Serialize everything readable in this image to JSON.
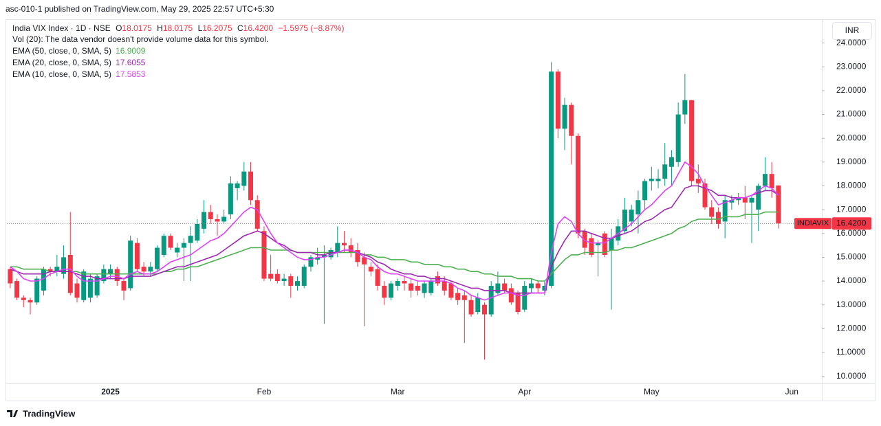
{
  "header": "asc-010-1 published on TradingView.com, May 29, 2025 22:57 UTC+5:30",
  "footer_brand": "TradingView",
  "currency": "INR",
  "chart_data": {
    "type": "candlestick",
    "symbol": "India VIX Index · 1D · NSE",
    "ohlc_legend": [
      {
        "label": "O",
        "value": 18.0175
      },
      {
        "label": "H",
        "value": 18.0175
      },
      {
        "label": "L",
        "value": 16.2075
      },
      {
        "label": "C",
        "value": 16.42,
        "value_label": "16.4200"
      }
    ],
    "change_label": "−1.5975 (−8.87%)",
    "volume_note": "Vol (20): The data vendor doesn't provide volume data for this symbol.",
    "up_color": "#089981",
    "down_color": "#f23645",
    "categories": [
      null,
      null,
      null,
      null,
      null,
      null,
      null,
      null,
      null,
      null,
      null,
      null,
      null,
      null,
      null,
      "2025",
      null,
      null,
      null,
      null,
      null,
      null,
      null,
      null,
      null,
      null,
      null,
      null,
      null,
      null,
      null,
      null,
      null,
      null,
      null,
      null,
      null,
      null,
      "Feb",
      null,
      null,
      null,
      null,
      null,
      null,
      null,
      null,
      null,
      null,
      null,
      null,
      null,
      null,
      null,
      null,
      null,
      null,
      null,
      "Mar",
      null,
      null,
      null,
      null,
      null,
      null,
      null,
      null,
      null,
      null,
      null,
      null,
      null,
      null,
      null,
      null,
      null,
      null,
      "Apr",
      null,
      null,
      null,
      null,
      null,
      null,
      null,
      null,
      null,
      null,
      null,
      null,
      null,
      null,
      null,
      null,
      null,
      null,
      "May",
      null,
      null,
      null,
      null,
      null,
      null,
      null,
      null,
      null,
      null,
      null,
      null,
      null,
      null,
      null,
      null,
      null,
      null,
      null,
      null,
      "Jun",
      null,
      null,
      null,
      null
    ],
    "open": [
      14.5,
      14.0,
      13.3,
      13.2,
      13.1,
      13.6,
      14.5,
      14.4,
      14.3,
      15.1,
      13.9,
      13.2,
      13.3,
      13.4,
      14.0,
      14.3,
      14.5,
      14.0,
      13.7,
      15.6,
      14.6,
      14.4,
      14.5,
      15.1,
      15.9,
      15.2,
      15.4,
      15.6,
      15.7,
      16.2,
      16.9,
      16.6,
      16.5,
      16.8,
      17.9,
      18.0,
      18.6,
      17.4,
      16.1,
      14.3,
      14.3,
      14.0,
      14.2,
      13.8,
      13.8,
      14.6,
      14.9,
      15.0,
      15.0,
      15.2,
      15.6,
      15.5,
      15.3,
      15.0,
      14.6,
      14.5,
      13.8,
      13.3,
      13.8,
      14.0,
      13.9,
      13.8,
      13.5,
      13.5,
      14.2,
      14.0,
      13.9,
      13.5,
      13.4,
      13.2,
      12.7,
      13.0,
      12.6,
      13.5,
      13.9,
      13.7,
      13.5,
      12.8,
      13.7,
      13.9,
      13.6,
      13.8,
      22.8,
      20.4,
      21.4,
      20.1,
      16.1,
      15.8,
      15.5,
      16.0,
      15.3,
      15.7,
      16.1,
      16.5,
      16.8,
      17.4,
      18.2,
      18.2,
      18.3,
      18.8,
      19.0,
      21.0,
      21.6,
      18.3,
      18.1,
      17.1,
      16.9,
      16.5,
      17.3,
      17.4,
      17.5,
      17.3,
      17.0,
      18.0,
      18.5,
      18.0175,
      null,
      null,
      null,
      null,
      null,
      null
    ],
    "high": [
      14.6,
      14.1,
      13.4,
      13.3,
      14.2,
      14.6,
      14.6,
      15.1,
      15.5,
      16.9,
      14.1,
      14.5,
      14.3,
      14.3,
      14.7,
      14.7,
      14.6,
      14.1,
      15.9,
      15.8,
      14.8,
      14.8,
      15.5,
      16.0,
      16.0,
      15.6,
      15.8,
      16.3,
      16.6,
      17.4,
      17.2,
      16.8,
      17.0,
      18.4,
      18.2,
      19.0,
      19.0,
      17.6,
      16.3,
      15.1,
      14.5,
      14.3,
      14.3,
      14.2,
      14.7,
      15.1,
      15.4,
      15.5,
      15.4,
      16.3,
      16.1,
      15.8,
      15.6,
      15.2,
      14.8,
      14.7,
      14.0,
      14.0,
      14.1,
      14.2,
      14.1,
      14.0,
      14.0,
      14.1,
      14.4,
      14.2,
      14.0,
      13.7,
      13.6,
      13.4,
      13.5,
      13.1,
      14.0,
      14.4,
      14.1,
      13.9,
      13.6,
      14.0,
      14.1,
      14.0,
      14.0,
      23.2,
      22.9,
      21.7,
      21.5,
      20.2,
      16.2,
      16.0,
      15.7,
      16.1,
      16.2,
      16.6,
      17.5,
      17.2,
      17.8,
      18.3,
      18.8,
      18.7,
      19.8,
      19.5,
      21.5,
      22.7,
      21.6,
      18.9,
      18.3,
      17.4,
      17.1,
      17.6,
      17.6,
      17.7,
      18.0,
      17.6,
      18.1,
      19.2,
      19.0,
      18.0175,
      null,
      null,
      null,
      null,
      null,
      null
    ],
    "low": [
      13.7,
      13.2,
      12.9,
      12.6,
      13.0,
      13.4,
      14.2,
      14.2,
      14.1,
      13.4,
      13.1,
      13.1,
      13.1,
      13.3,
      13.9,
      14.1,
      13.8,
      13.2,
      13.6,
      14.4,
      14.2,
      14.2,
      14.4,
      15.0,
      15.3,
      15.0,
      14.0,
      14.0,
      15.6,
      16.0,
      16.4,
      15.9,
      16.4,
      16.6,
      17.4,
      17.8,
      17.2,
      16.1,
      14.0,
      14.0,
      13.9,
      13.8,
      13.3,
      13.6,
      13.7,
      14.4,
      14.7,
      12.2,
      14.9,
      15.0,
      15.2,
      15.0,
      14.6,
      12.1,
      14.2,
      13.6,
      13.0,
      13.2,
      13.6,
      13.6,
      13.3,
      13.4,
      13.3,
      13.4,
      13.8,
      13.4,
      13.2,
      13.0,
      11.4,
      12.5,
      12.6,
      10.7,
      12.5,
      13.4,
      13.5,
      13.0,
      12.6,
      12.7,
      13.5,
      13.5,
      13.4,
      13.7,
      20.0,
      19.5,
      18.9,
      15.8,
      15.1,
      15.0,
      14.2,
      15.0,
      12.8,
      15.5,
      16.0,
      16.3,
      16.0,
      17.0,
      17.8,
      17.9,
      18.0,
      18.0,
      18.8,
      20.6,
      18.0,
      17.7,
      17.0,
      16.4,
      16.2,
      15.8,
      17.0,
      17.2,
      16.6,
      15.6,
      16.1,
      17.8,
      17.5,
      16.2075,
      null,
      null,
      null,
      null,
      null,
      null
    ],
    "close": [
      13.9,
      13.3,
      13.2,
      13.1,
      14.1,
      14.5,
      14.4,
      14.6,
      15.0,
      13.5,
      13.3,
      14.4,
      14.1,
      14.2,
      14.5,
      14.5,
      14.0,
      13.6,
      15.7,
      14.5,
      14.4,
      14.6,
      15.4,
      15.9,
      15.4,
      15.4,
      15.6,
      15.9,
      16.4,
      16.9,
      16.6,
      16.5,
      16.7,
      18.1,
      18.1,
      18.6,
      17.4,
      16.2,
      14.1,
      14.1,
      14.0,
      14.1,
      13.8,
      14.0,
      14.6,
      15.0,
      15.0,
      15.1,
      15.3,
      15.6,
      15.5,
      15.2,
      14.8,
      14.7,
      14.4,
      13.8,
      13.3,
      13.9,
      14.0,
      13.9,
      13.6,
      13.6,
      13.9,
      14.0,
      13.9,
      13.6,
      13.3,
      13.2,
      13.2,
      12.6,
      13.3,
      12.6,
      13.8,
      13.9,
      13.6,
      13.1,
      12.7,
      13.8,
      13.9,
      13.7,
      13.8,
      22.8,
      20.4,
      21.4,
      20.1,
      16.0,
      15.4,
      15.1,
      15.6,
      15.1,
      15.8,
      16.3,
      17.0,
      17.0,
      17.4,
      18.2,
      18.3,
      18.3,
      18.9,
      19.2,
      21.0,
      21.6,
      18.2,
      18.1,
      17.1,
      16.7,
      16.4,
      17.4,
      17.4,
      17.5,
      17.3,
      17.5,
      18.0,
      18.5,
      17.9,
      16.42,
      null,
      null,
      null,
      null,
      null,
      null
    ],
    "series": [
      {
        "name": "EMA (50, close, 0, SMA, 5)",
        "color": "#4caf50",
        "values": [
          14.6,
          14.6,
          14.5,
          14.5,
          14.5,
          14.5,
          14.4,
          14.4,
          14.4,
          14.4,
          14.4,
          14.3,
          14.3,
          14.3,
          14.3,
          14.3,
          14.3,
          14.3,
          14.3,
          14.3,
          14.3,
          14.3,
          14.3,
          14.4,
          14.4,
          14.5,
          14.5,
          14.6,
          14.6,
          14.7,
          14.8,
          14.9,
          15.0,
          15.1,
          15.2,
          15.3,
          15.4,
          15.4,
          15.4,
          15.3,
          15.3,
          15.3,
          15.3,
          15.2,
          15.2,
          15.2,
          15.2,
          15.2,
          15.2,
          15.2,
          15.2,
          15.2,
          15.2,
          15.1,
          15.1,
          15.0,
          15.0,
          14.9,
          14.9,
          14.9,
          14.8,
          14.8,
          14.7,
          14.7,
          14.7,
          14.6,
          14.6,
          14.5,
          14.5,
          14.4,
          14.4,
          14.3,
          14.3,
          14.2,
          14.2,
          14.2,
          14.1,
          14.1,
          14.1,
          14.0,
          14.0,
          14.3,
          14.6,
          14.9,
          15.1,
          15.1,
          15.2,
          15.2,
          15.2,
          15.2,
          15.3,
          15.3,
          15.4,
          15.4,
          15.5,
          15.6,
          15.7,
          15.8,
          15.9,
          16.0,
          16.2,
          16.3,
          16.5,
          16.6,
          16.6,
          16.6,
          16.6,
          16.7,
          16.7,
          16.7,
          16.8,
          16.8,
          16.8,
          16.9,
          16.9,
          16.9009,
          null,
          null,
          null,
          null,
          null,
          null
        ]
      },
      {
        "name": "EMA (20, close, 0, SMA, 5)",
        "color": "#9c27b0",
        "values": [
          14.5,
          14.4,
          14.3,
          14.3,
          14.3,
          14.3,
          14.4,
          14.4,
          14.4,
          14.4,
          14.3,
          14.2,
          14.2,
          14.1,
          14.1,
          14.1,
          14.1,
          14.1,
          14.2,
          14.2,
          14.2,
          14.2,
          14.3,
          14.4,
          14.5,
          14.6,
          14.6,
          14.7,
          14.8,
          14.9,
          15.0,
          15.1,
          15.3,
          15.5,
          15.7,
          15.9,
          16.0,
          16.1,
          16.0,
          15.8,
          15.6,
          15.5,
          15.3,
          15.2,
          15.2,
          15.2,
          15.1,
          15.1,
          15.2,
          15.2,
          15.3,
          15.3,
          15.2,
          15.1,
          15.0,
          14.8,
          14.7,
          14.5,
          14.4,
          14.3,
          14.3,
          14.2,
          14.2,
          14.1,
          14.1,
          14.1,
          14.0,
          13.9,
          13.8,
          13.7,
          13.7,
          13.6,
          13.6,
          13.6,
          13.6,
          13.5,
          13.5,
          13.5,
          13.5,
          13.5,
          13.5,
          14.6,
          15.2,
          15.7,
          16.1,
          16.1,
          16.1,
          16.0,
          15.9,
          15.8,
          15.8,
          15.9,
          16.0,
          16.1,
          16.3,
          16.5,
          16.6,
          16.8,
          17.0,
          17.1,
          17.5,
          17.9,
          18.0,
          18.0,
          17.9,
          17.8,
          17.6,
          17.6,
          17.5,
          17.5,
          17.5,
          17.6,
          17.7,
          17.8,
          17.8,
          17.6055,
          null,
          null,
          null,
          null,
          null,
          null
        ]
      },
      {
        "name": "EMA (10, close, 0, SMA, 5)",
        "color": "#e040fb",
        "values": [
          14.6,
          14.4,
          14.1,
          14.0,
          14.0,
          14.1,
          14.3,
          14.4,
          14.5,
          14.5,
          14.2,
          14.0,
          14.0,
          14.0,
          14.1,
          14.2,
          14.2,
          14.1,
          14.3,
          14.4,
          14.3,
          14.3,
          14.4,
          14.6,
          14.8,
          14.9,
          15.0,
          15.1,
          15.3,
          15.5,
          15.7,
          15.8,
          16.0,
          16.3,
          16.6,
          16.9,
          17.1,
          17.0,
          16.5,
          16.0,
          15.6,
          15.4,
          15.2,
          15.0,
          14.9,
          14.9,
          15.0,
          15.0,
          15.1,
          15.2,
          15.3,
          15.3,
          15.2,
          15.0,
          14.9,
          14.6,
          14.4,
          14.3,
          14.3,
          14.2,
          14.1,
          14.0,
          14.0,
          14.0,
          14.0,
          14.0,
          13.9,
          13.7,
          13.6,
          13.4,
          13.3,
          13.2,
          13.3,
          13.4,
          13.5,
          13.5,
          13.4,
          13.4,
          13.5,
          13.5,
          13.5,
          15.2,
          16.4,
          16.7,
          16.5,
          16.0,
          15.7,
          15.6,
          15.6,
          15.6,
          15.8,
          16.0,
          16.2,
          16.4,
          16.7,
          17.0,
          17.2,
          17.5,
          17.8,
          18.0,
          18.5,
          19.0,
          18.8,
          18.5,
          18.0,
          17.6,
          17.2,
          17.3,
          17.4,
          17.5,
          17.5,
          17.6,
          17.8,
          18.0,
          17.9,
          17.5853,
          null,
          null,
          null,
          null,
          null,
          null
        ]
      }
    ],
    "ylim": [
      9.7,
      25.0
    ],
    "yticks": [
      {
        "value": 10,
        "label": "10.0000"
      },
      {
        "value": 11,
        "label": "11.0000"
      },
      {
        "value": 12,
        "label": "12.0000"
      },
      {
        "value": 13,
        "label": "13.0000"
      },
      {
        "value": 14,
        "label": "14.0000"
      },
      {
        "value": 15,
        "label": "15.0000"
      },
      {
        "value": 16,
        "label": "16.0000"
      },
      {
        "value": 17,
        "label": "17.0000"
      },
      {
        "value": 18,
        "label": "18.0000"
      },
      {
        "value": 19,
        "label": "19.0000"
      },
      {
        "value": 20,
        "label": "20.0000"
      },
      {
        "value": 21,
        "label": "21.0000"
      },
      {
        "value": 22,
        "label": "22.0000"
      },
      {
        "value": 23,
        "label": "23.0000"
      },
      {
        "value": 24,
        "label": "24.0000"
      }
    ],
    "last_price": {
      "value": 16.42,
      "label": "16.4200"
    },
    "last_price_tag": "INDIAVIX"
  }
}
